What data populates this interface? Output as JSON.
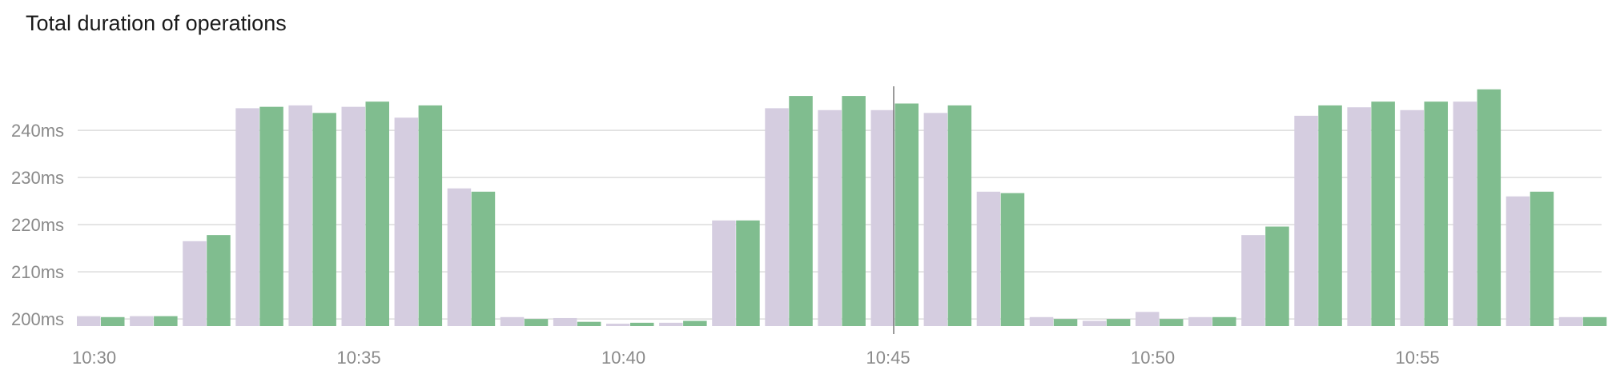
{
  "chart_data": {
    "type": "bar",
    "title": "Total duration of operations",
    "x": [
      "10:30",
      "10:31",
      "10:32",
      "10:33",
      "10:34",
      "10:35",
      "10:36",
      "10:37",
      "10:38",
      "10:39",
      "10:40",
      "10:41",
      "10:42",
      "10:43",
      "10:44",
      "10:45",
      "10:46",
      "10:47",
      "10:48",
      "10:49",
      "10:50",
      "10:51",
      "10:52",
      "10:53",
      "10:54",
      "10:55",
      "10:56",
      "10:57",
      "10:58"
    ],
    "series": [
      {
        "color": "#d5cde0",
        "values": [
          200.6,
          200.6,
          216.5,
          244.7,
          245.3,
          245.0,
          242.7,
          227.7,
          200.4,
          200.2,
          199.0,
          199.2,
          220.9,
          244.7,
          244.3,
          244.3,
          243.7,
          227.0,
          200.4,
          199.6,
          201.5,
          200.4,
          217.8,
          243.1,
          244.9,
          244.3,
          246.1,
          226.0,
          200.4
        ]
      },
      {
        "color": "#80bd8f",
        "values": [
          200.4,
          200.6,
          217.8,
          245.0,
          243.7,
          246.1,
          245.3,
          227.0,
          200.0,
          199.4,
          199.2,
          199.6,
          220.9,
          247.3,
          247.3,
          245.7,
          245.3,
          226.7,
          200.0,
          200.0,
          200.0,
          200.4,
          219.6,
          245.3,
          246.1,
          246.1,
          248.7,
          227.0,
          200.4
        ]
      }
    ],
    "yticks": [
      200,
      210,
      220,
      230,
      240
    ],
    "ytick_labels": [
      "200ms",
      "210ms",
      "220ms",
      "230ms",
      "240ms"
    ],
    "xticks": [
      "10:30",
      "10:35",
      "10:40",
      "10:45",
      "10:50",
      "10:55"
    ],
    "ylim": [
      198.5,
      250
    ],
    "grid": true,
    "cursor_x": "10:45"
  }
}
